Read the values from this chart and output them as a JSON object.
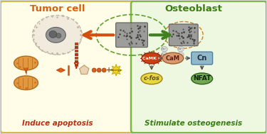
{
  "outer_bg": "#d8d8d8",
  "left_panel_bg": "#fffde8",
  "left_panel_border": "#d4b840",
  "right_panel_bg": "#eef8e0",
  "right_panel_border": "#7ab840",
  "title_left": "Tumor cell",
  "title_right": "Osteoblast",
  "title_left_color": "#d86010",
  "title_right_color": "#3a8010",
  "label_left": "Induce apoptosis",
  "label_right": "Stimulate osteogenesis",
  "label_color_left": "#b83010",
  "label_color_right": "#3a8010",
  "camk_label": "CaMK II",
  "cam_label": "CaM",
  "cn_label": "Cn",
  "cfos_label": "c-fos",
  "nfat_label": "NFAT",
  "camk_color": "#c84010",
  "cam_color": "#d89870",
  "cn_color": "#90b8c8",
  "cfos_color": "#e8d840",
  "nfat_color": "#70a850",
  "scaffold_color": "#909090",
  "arrow_orange": "#d05010",
  "arrow_green": "#408020",
  "mito_color": "#e09030",
  "tumor_dot_color": "#c0b0a0"
}
